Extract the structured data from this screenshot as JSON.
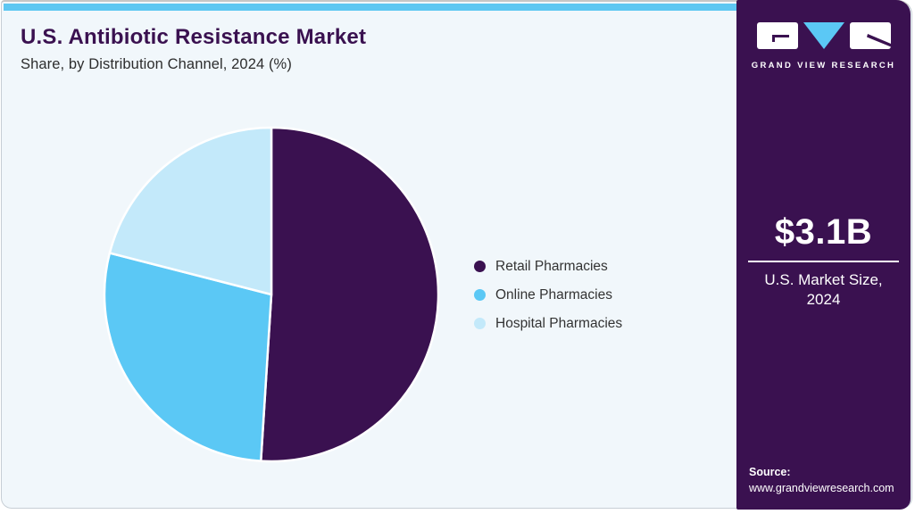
{
  "header": {
    "title": "U.S. Antibiotic Resistance Market",
    "subtitle": "Share, by Distribution Channel, 2024 (%)"
  },
  "chart_data": {
    "type": "pie",
    "title": "U.S. Antibiotic Resistance Market Share, by Distribution Channel, 2024 (%)",
    "categories": [
      "Retail Pharmacies",
      "Online Pharmacies",
      "Hospital Pharmacies"
    ],
    "values": [
      51,
      28,
      21
    ],
    "unit": "%",
    "colors": [
      "#3a1150",
      "#5bc8f5",
      "#c3e9fa"
    ],
    "start_angle_deg": 0,
    "direction": "clockwise",
    "legend_position": "right",
    "data_labels_shown": false
  },
  "legend": {
    "items": [
      {
        "label": "Retail Pharmacies",
        "color": "#3a1150"
      },
      {
        "label": "Online Pharmacies",
        "color": "#5bc8f5"
      },
      {
        "label": "Hospital Pharmacies",
        "color": "#c3e9fa"
      }
    ]
  },
  "sidebar": {
    "logo": {
      "brand": "GRAND VIEW RESEARCH"
    },
    "market_size_value": "$3.1B",
    "market_size_label_line1": "U.S. Market Size,",
    "market_size_label_line2": "2024",
    "source_label": "Source:",
    "source_url": "www.grandviewresearch.com"
  },
  "colors": {
    "accent_cyan": "#5ec7f2",
    "brand_purple": "#3a1150",
    "panel_bg": "#f1f7fb"
  }
}
